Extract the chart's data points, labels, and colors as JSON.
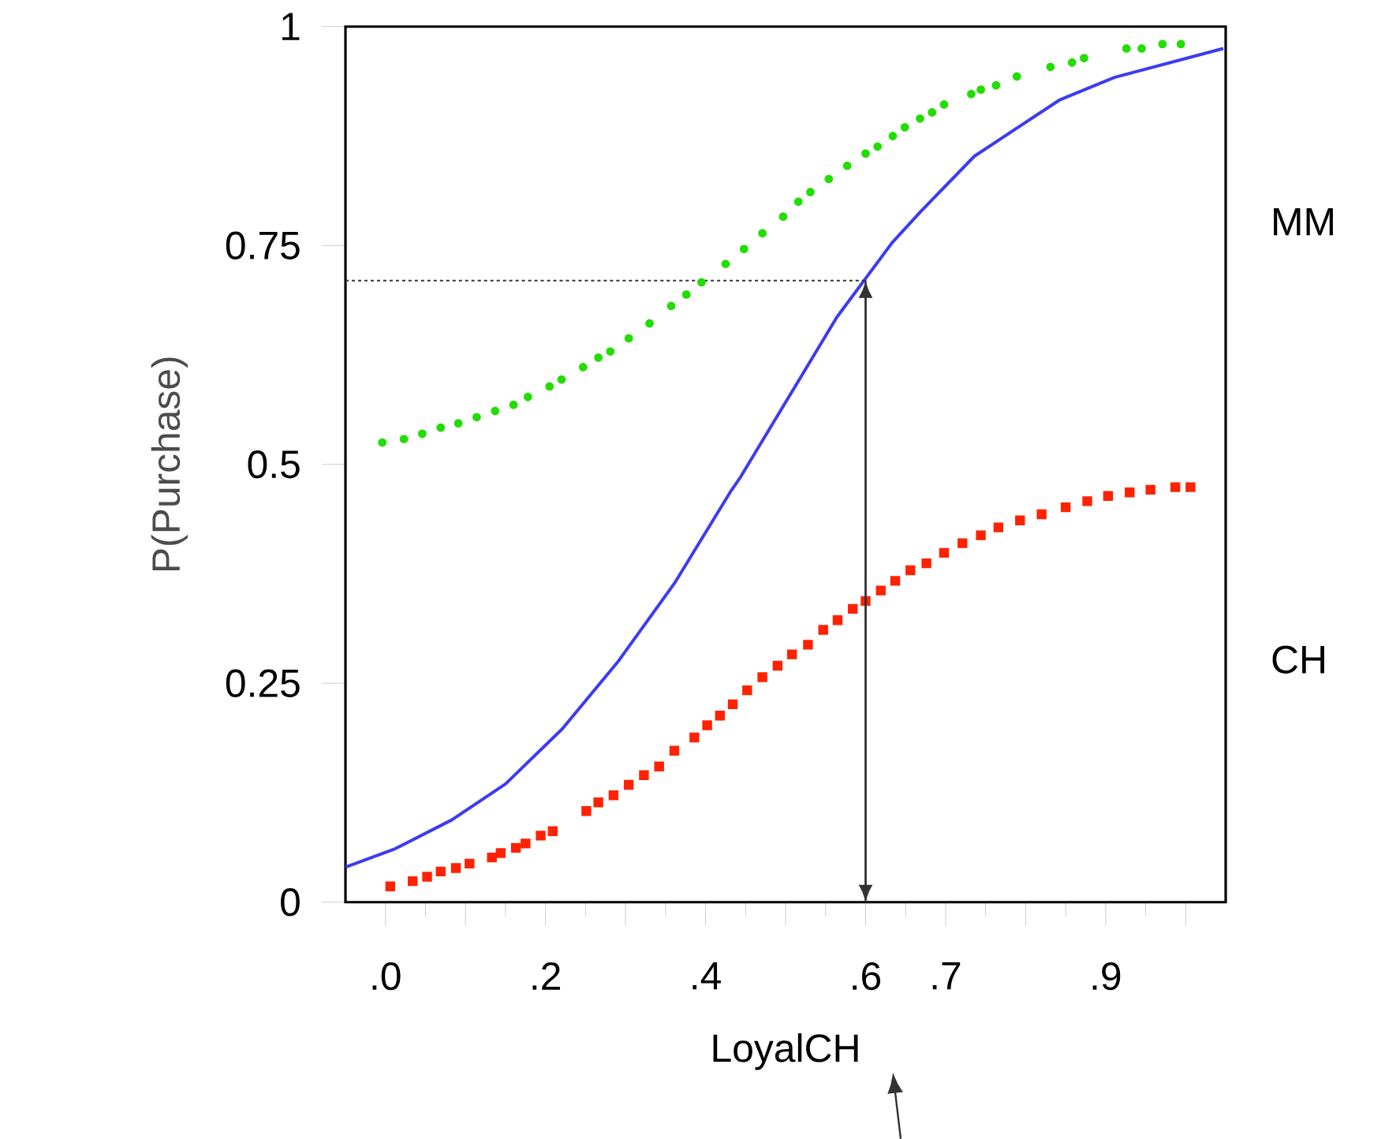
{
  "chart_data": {
    "type": "scatter",
    "xlabel": "LoyalCH",
    "ylabel": "P(Purchase)",
    "xlim": [
      -0.05,
      1.05
    ],
    "ylim": [
      0,
      1
    ],
    "xticks": [
      {
        "value": 0,
        "label": ".0"
      },
      {
        "value": 0.05,
        "label": null
      },
      {
        "value": 0.1,
        "label": null
      },
      {
        "value": 0.15,
        "label": null
      },
      {
        "value": 0.2,
        "label": ".2"
      },
      {
        "value": 0.25,
        "label": null
      },
      {
        "value": 0.3,
        "label": null
      },
      {
        "value": 0.35,
        "label": null
      },
      {
        "value": 0.4,
        "label": ".4"
      },
      {
        "value": 0.45,
        "label": null
      },
      {
        "value": 0.5,
        "label": null
      },
      {
        "value": 0.55,
        "label": null
      },
      {
        "value": 0.6,
        "label": ".6"
      },
      {
        "value": 0.65,
        "label": null
      },
      {
        "value": 0.7,
        "label": ".7"
      },
      {
        "value": 0.75,
        "label": null
      },
      {
        "value": 0.8,
        "label": null
      },
      {
        "value": 0.85,
        "label": null
      },
      {
        "value": 0.9,
        "label": ".9"
      },
      {
        "value": 0.95,
        "label": null
      },
      {
        "value": 1.0,
        "label": null
      }
    ],
    "yticks": [
      0,
      0.25,
      0.5,
      0.75,
      1
    ],
    "annotations": [
      "MM",
      "CH"
    ],
    "grid": false,
    "series": [
      {
        "marker": "circle",
        "color": "#22dd00",
        "x": [
          -0.004,
          0.023,
          0.046,
          0.069,
          0.091,
          0.114,
          0.137,
          0.16,
          0.178,
          0.205,
          0.22,
          0.247,
          0.266,
          0.281,
          0.304,
          0.33,
          0.357,
          0.376,
          0.395,
          0.425,
          0.448,
          0.471,
          0.497,
          0.516,
          0.531,
          0.554,
          0.577,
          0.6,
          0.615,
          0.634,
          0.649,
          0.668,
          0.683,
          0.698,
          0.732,
          0.744,
          0.763,
          0.789,
          0.831,
          0.858,
          0.873,
          0.926,
          0.945,
          0.971,
          0.994
        ],
        "values": [
          0.525,
          0.529,
          0.535,
          0.542,
          0.547,
          0.554,
          0.561,
          0.568,
          0.577,
          0.589,
          0.597,
          0.611,
          0.622,
          0.629,
          0.644,
          0.661,
          0.681,
          0.694,
          0.708,
          0.729,
          0.746,
          0.764,
          0.783,
          0.8,
          0.811,
          0.826,
          0.841,
          0.855,
          0.863,
          0.875,
          0.885,
          0.895,
          0.902,
          0.911,
          0.923,
          0.928,
          0.933,
          0.943,
          0.954,
          0.959,
          0.964,
          0.975,
          0.975,
          0.98,
          0.98
        ]
      },
      {
        "marker": "square",
        "color": "#ff2200",
        "x": [
          0.006,
          0.034,
          0.052,
          0.069,
          0.088,
          0.105,
          0.133,
          0.144,
          0.163,
          0.175,
          0.194,
          0.209,
          0.251,
          0.266,
          0.285,
          0.304,
          0.323,
          0.342,
          0.361,
          0.386,
          0.402,
          0.418,
          0.434,
          0.452,
          0.471,
          0.49,
          0.508,
          0.528,
          0.547,
          0.565,
          0.584,
          0.6,
          0.619,
          0.637,
          0.656,
          0.676,
          0.698,
          0.721,
          0.744,
          0.766,
          0.793,
          0.82,
          0.85,
          0.877,
          0.903,
          0.93,
          0.956,
          0.987,
          1.006
        ],
        "values": [
          0.018,
          0.024,
          0.029,
          0.035,
          0.039,
          0.044,
          0.051,
          0.056,
          0.062,
          0.067,
          0.076,
          0.081,
          0.104,
          0.114,
          0.122,
          0.134,
          0.145,
          0.155,
          0.173,
          0.188,
          0.202,
          0.213,
          0.226,
          0.242,
          0.257,
          0.27,
          0.283,
          0.294,
          0.311,
          0.322,
          0.335,
          0.344,
          0.356,
          0.367,
          0.379,
          0.387,
          0.399,
          0.41,
          0.419,
          0.428,
          0.436,
          0.443,
          0.451,
          0.458,
          0.464,
          0.468,
          0.471,
          0.474,
          0.474
        ]
      },
      {
        "type": "line",
        "marker": "none",
        "line_style": "solid",
        "color": "#3c3cf0",
        "x": [
          -0.05,
          0.012,
          0.083,
          0.15,
          0.221,
          0.29,
          0.361,
          0.432,
          0.444,
          0.564,
          0.633,
          0.668,
          0.736,
          0.842,
          0.911,
          1.047
        ],
        "values": [
          0.04,
          0.061,
          0.094,
          0.135,
          0.198,
          0.274,
          0.364,
          0.47,
          0.486,
          0.668,
          0.753,
          0.788,
          0.852,
          0.916,
          0.942,
          0.975
        ]
      },
      {
        "type": "line",
        "marker": "none",
        "line_style": "dotted",
        "color": "#333333",
        "x": [
          -0.05,
          0.6
        ],
        "values": [
          0.71,
          0.71
        ]
      }
    ]
  }
}
